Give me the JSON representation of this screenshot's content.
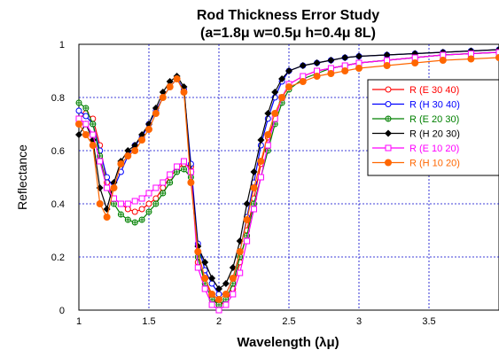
{
  "chart_data": {
    "type": "line",
    "title": "Rod Thickness Error Study",
    "subtitle": "(a=1.8μ w=0.5μ h=0.4μ 8L)",
    "xlabel": "Wavelength (λμ)",
    "ylabel": "Reflectance",
    "xlim": [
      1,
      4
    ],
    "ylim": [
      0,
      1
    ],
    "x_ticks": [
      "1",
      "1.5",
      "2",
      "2.5",
      "3",
      "3.5"
    ],
    "y_ticks": [
      "0",
      "0.2",
      "0.4",
      "0.6",
      "0.8",
      "1"
    ],
    "grid": true,
    "legend_position": "top-right",
    "series": [
      {
        "name": "R (E 30 40)",
        "color": "#ff0000",
        "marker": "open-circle",
        "x": [
          1.0,
          1.05,
          1.1,
          1.15,
          1.2,
          1.25,
          1.3,
          1.35,
          1.4,
          1.45,
          1.5,
          1.55,
          1.6,
          1.65,
          1.7,
          1.75,
          1.8,
          1.85,
          1.9,
          1.95,
          2.0,
          2.05,
          2.1,
          2.15,
          2.2,
          2.25,
          2.3,
          2.35,
          2.4,
          2.45,
          2.5,
          2.6,
          2.7,
          2.8,
          2.9,
          3.0,
          3.2,
          3.4,
          3.6,
          3.8,
          4.0
        ],
        "y": [
          0.72,
          0.74,
          0.72,
          0.62,
          0.48,
          0.42,
          0.4,
          0.38,
          0.37,
          0.38,
          0.4,
          0.42,
          0.46,
          0.5,
          0.53,
          0.55,
          0.54,
          0.18,
          0.12,
          0.05,
          0.02,
          0.03,
          0.08,
          0.18,
          0.3,
          0.42,
          0.55,
          0.65,
          0.72,
          0.8,
          0.85,
          0.88,
          0.9,
          0.91,
          0.92,
          0.93,
          0.94,
          0.95,
          0.96,
          0.965,
          0.97
        ]
      },
      {
        "name": "R (H 30 40)",
        "color": "#0000ff",
        "marker": "open-circle",
        "x": [
          1.0,
          1.05,
          1.1,
          1.15,
          1.2,
          1.25,
          1.3,
          1.35,
          1.4,
          1.45,
          1.5,
          1.55,
          1.6,
          1.65,
          1.7,
          1.75,
          1.8,
          1.85,
          1.9,
          1.95,
          2.0,
          2.05,
          2.1,
          2.15,
          2.2,
          2.25,
          2.3,
          2.35,
          2.4,
          2.45,
          2.5,
          2.6,
          2.7,
          2.8,
          2.9,
          3.0,
          3.2,
          3.4,
          3.6,
          3.8,
          4.0
        ],
        "y": [
          0.75,
          0.73,
          0.7,
          0.6,
          0.5,
          0.46,
          0.52,
          0.58,
          0.62,
          0.65,
          0.7,
          0.75,
          0.8,
          0.84,
          0.87,
          0.83,
          0.55,
          0.25,
          0.15,
          0.1,
          0.06,
          0.06,
          0.12,
          0.22,
          0.35,
          0.48,
          0.62,
          0.72,
          0.8,
          0.86,
          0.9,
          0.92,
          0.93,
          0.94,
          0.95,
          0.955,
          0.96,
          0.965,
          0.97,
          0.975,
          0.98
        ]
      },
      {
        "name": "R (E 20 30)",
        "color": "#008000",
        "marker": "open-plus",
        "x": [
          1.0,
          1.05,
          1.1,
          1.15,
          1.2,
          1.25,
          1.3,
          1.35,
          1.4,
          1.45,
          1.5,
          1.55,
          1.6,
          1.65,
          1.7,
          1.75,
          1.8,
          1.85,
          1.9,
          1.95,
          2.0,
          2.05,
          2.1,
          2.15,
          2.2,
          2.25,
          2.3,
          2.35,
          2.4,
          2.45,
          2.5,
          2.6,
          2.7,
          2.8,
          2.9,
          3.0,
          3.2,
          3.4,
          3.6,
          3.8,
          4.0
        ],
        "y": [
          0.78,
          0.76,
          0.7,
          0.58,
          0.46,
          0.4,
          0.36,
          0.34,
          0.33,
          0.34,
          0.37,
          0.4,
          0.44,
          0.48,
          0.52,
          0.53,
          0.5,
          0.2,
          0.1,
          0.04,
          0.02,
          0.04,
          0.1,
          0.2,
          0.28,
          0.4,
          0.5,
          0.6,
          0.7,
          0.78,
          0.83,
          0.87,
          0.89,
          0.91,
          0.92,
          0.93,
          0.94,
          0.95,
          0.96,
          0.965,
          0.97
        ]
      },
      {
        "name": "R (H 20 30)",
        "color": "#000000",
        "marker": "filled-diamond",
        "x": [
          1.0,
          1.05,
          1.1,
          1.15,
          1.2,
          1.25,
          1.3,
          1.35,
          1.4,
          1.45,
          1.5,
          1.55,
          1.6,
          1.65,
          1.7,
          1.75,
          1.8,
          1.85,
          1.9,
          1.95,
          2.0,
          2.05,
          2.1,
          2.15,
          2.2,
          2.25,
          2.3,
          2.35,
          2.4,
          2.45,
          2.5,
          2.6,
          2.7,
          2.8,
          2.9,
          3.0,
          3.2,
          3.4,
          3.6,
          3.8,
          4.0
        ],
        "y": [
          0.66,
          0.7,
          0.64,
          0.46,
          0.38,
          0.48,
          0.56,
          0.6,
          0.62,
          0.66,
          0.7,
          0.76,
          0.82,
          0.86,
          0.88,
          0.84,
          0.52,
          0.24,
          0.18,
          0.12,
          0.08,
          0.1,
          0.16,
          0.26,
          0.4,
          0.52,
          0.64,
          0.74,
          0.82,
          0.87,
          0.9,
          0.92,
          0.93,
          0.94,
          0.95,
          0.955,
          0.96,
          0.965,
          0.97,
          0.975,
          0.98
        ]
      },
      {
        "name": "R (E 10 20)",
        "color": "#ff00ff",
        "marker": "open-square",
        "x": [
          1.0,
          1.05,
          1.1,
          1.15,
          1.2,
          1.25,
          1.3,
          1.35,
          1.4,
          1.45,
          1.5,
          1.55,
          1.6,
          1.65,
          1.7,
          1.75,
          1.8,
          1.85,
          1.9,
          1.95,
          2.0,
          2.05,
          2.1,
          2.15,
          2.2,
          2.25,
          2.3,
          2.35,
          2.4,
          2.45,
          2.5,
          2.6,
          2.7,
          2.8,
          2.9,
          3.0,
          3.2,
          3.4,
          3.6,
          3.8,
          4.0
        ],
        "y": [
          0.72,
          0.7,
          0.66,
          0.56,
          0.46,
          0.42,
          0.4,
          0.4,
          0.41,
          0.42,
          0.44,
          0.46,
          0.48,
          0.51,
          0.54,
          0.56,
          0.52,
          0.16,
          0.08,
          0.02,
          0.0,
          0.02,
          0.06,
          0.14,
          0.26,
          0.38,
          0.5,
          0.62,
          0.72,
          0.8,
          0.85,
          0.88,
          0.9,
          0.91,
          0.92,
          0.93,
          0.94,
          0.95,
          0.96,
          0.965,
          0.97
        ]
      },
      {
        "name": "R (H 10 20)",
        "color": "#ff6600",
        "marker": "filled-circle",
        "x": [
          1.0,
          1.05,
          1.1,
          1.15,
          1.2,
          1.25,
          1.3,
          1.35,
          1.4,
          1.45,
          1.5,
          1.55,
          1.6,
          1.65,
          1.7,
          1.75,
          1.8,
          1.85,
          1.9,
          1.95,
          2.0,
          2.05,
          2.1,
          2.15,
          2.2,
          2.25,
          2.3,
          2.35,
          2.4,
          2.45,
          2.5,
          2.6,
          2.7,
          2.8,
          2.9,
          3.0,
          3.2,
          3.4,
          3.6,
          3.8,
          4.0
        ],
        "y": [
          0.7,
          0.66,
          0.62,
          0.4,
          0.35,
          0.46,
          0.55,
          0.58,
          0.6,
          0.64,
          0.68,
          0.74,
          0.8,
          0.84,
          0.87,
          0.82,
          0.48,
          0.22,
          0.12,
          0.06,
          0.04,
          0.06,
          0.12,
          0.22,
          0.34,
          0.46,
          0.56,
          0.66,
          0.74,
          0.8,
          0.84,
          0.86,
          0.88,
          0.89,
          0.9,
          0.91,
          0.92,
          0.93,
          0.94,
          0.945,
          0.95
        ]
      }
    ]
  }
}
